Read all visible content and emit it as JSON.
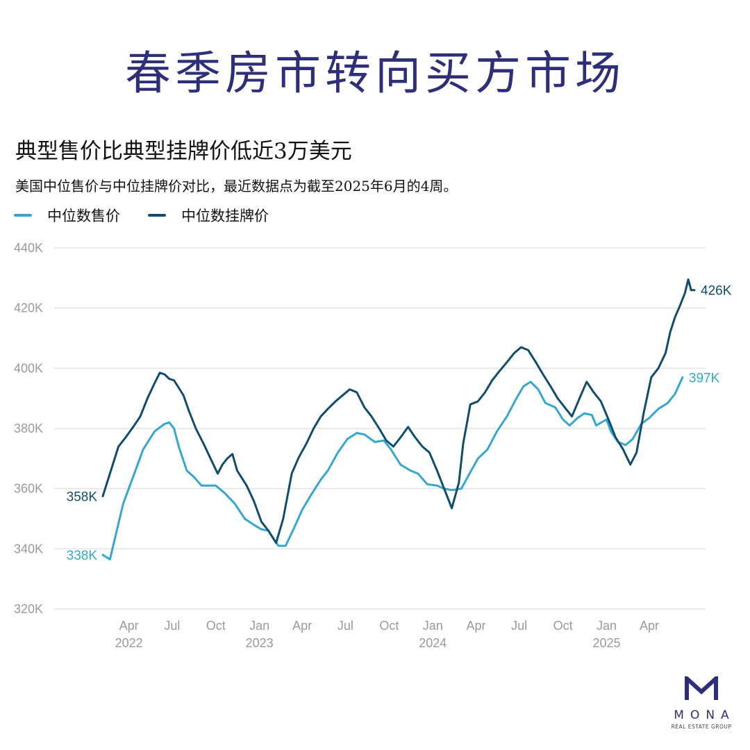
{
  "headline": "春季房市转向买方市场",
  "brand": {
    "name": "MONA",
    "tagline": "REAL ESTATE GROUP",
    "color": "#2e2f7a"
  },
  "chart_data": {
    "type": "line",
    "title": "典型售价比典型挂牌价低近3万美元",
    "subtitle": "美国中位售价与中位挂牌价对比，最近数据点为截至2025年6月的4周。",
    "y_ticks": [
      "440K",
      "420K",
      "400K",
      "380K",
      "360K",
      "340K",
      "320K"
    ],
    "ylim": [
      320000,
      440000
    ],
    "x_range": [
      "2022-02",
      "2025-06"
    ],
    "x_ticks": [
      {
        "month": "Apr",
        "year": "2022"
      },
      {
        "month": "Jul",
        "year": ""
      },
      {
        "month": "Oct",
        "year": ""
      },
      {
        "month": "Jan",
        "year": "2023"
      },
      {
        "month": "Apr",
        "year": ""
      },
      {
        "month": "Jul",
        "year": ""
      },
      {
        "month": "Oct",
        "year": ""
      },
      {
        "month": "Jan",
        "year": "2024"
      },
      {
        "month": "Apr",
        "year": ""
      },
      {
        "month": "Jul",
        "year": ""
      },
      {
        "month": "Oct",
        "year": ""
      },
      {
        "month": "Jan",
        "year": "2025"
      },
      {
        "month": "Apr",
        "year": ""
      }
    ],
    "grid": true,
    "legend_position": "top-left",
    "series": [
      {
        "name": "中位数售价",
        "color": "#35a7cf",
        "start_label": "338K",
        "end_label": "397K",
        "points": [
          [
            "2022-02-05",
            338000
          ],
          [
            "2022-02-20",
            336500
          ],
          [
            "2022-03-05",
            345000
          ],
          [
            "2022-03-20",
            355000
          ],
          [
            "2022-04-10",
            364000
          ],
          [
            "2022-05-01",
            373000
          ],
          [
            "2022-05-25",
            379000
          ],
          [
            "2022-06-15",
            381500
          ],
          [
            "2022-06-25",
            382000
          ],
          [
            "2022-07-05",
            380000
          ],
          [
            "2022-07-15",
            374000
          ],
          [
            "2022-08-01",
            366000
          ],
          [
            "2022-08-15",
            364000
          ],
          [
            "2022-09-01",
            361000
          ],
          [
            "2022-10-01",
            361000
          ],
          [
            "2022-10-20",
            358500
          ],
          [
            "2022-11-10",
            355000
          ],
          [
            "2022-12-01",
            350000
          ],
          [
            "2022-12-20",
            348000
          ],
          [
            "2023-01-05",
            346500
          ],
          [
            "2023-01-20",
            346000
          ],
          [
            "2023-02-01",
            343000
          ],
          [
            "2023-02-10",
            341000
          ],
          [
            "2023-02-25",
            341000
          ],
          [
            "2023-03-15",
            347000
          ],
          [
            "2023-04-01",
            353000
          ],
          [
            "2023-04-20",
            358000
          ],
          [
            "2023-05-10",
            363000
          ],
          [
            "2023-05-25",
            366000
          ],
          [
            "2023-06-15",
            372000
          ],
          [
            "2023-07-05",
            376500
          ],
          [
            "2023-07-25",
            378500
          ],
          [
            "2023-08-10",
            378000
          ],
          [
            "2023-09-01",
            375500
          ],
          [
            "2023-09-20",
            376000
          ],
          [
            "2023-10-05",
            373000
          ],
          [
            "2023-10-25",
            368000
          ],
          [
            "2023-11-15",
            366000
          ],
          [
            "2023-12-01",
            365000
          ],
          [
            "2023-12-20",
            361500
          ],
          [
            "2024-01-10",
            361000
          ],
          [
            "2024-01-25",
            360000
          ],
          [
            "2024-02-10",
            359500
          ],
          [
            "2024-03-01",
            360000
          ],
          [
            "2024-03-15",
            364000
          ],
          [
            "2024-04-05",
            370000
          ],
          [
            "2024-04-25",
            373000
          ],
          [
            "2024-05-15",
            379000
          ],
          [
            "2024-06-05",
            384000
          ],
          [
            "2024-06-25",
            390000
          ],
          [
            "2024-07-10",
            394000
          ],
          [
            "2024-07-25",
            395500
          ],
          [
            "2024-08-10",
            393000
          ],
          [
            "2024-08-25",
            388500
          ],
          [
            "2024-09-15",
            387000
          ],
          [
            "2024-10-01",
            383000
          ],
          [
            "2024-10-15",
            381000
          ],
          [
            "2024-11-01",
            383500
          ],
          [
            "2024-11-15",
            385000
          ],
          [
            "2024-12-01",
            384500
          ],
          [
            "2024-12-10",
            381000
          ],
          [
            "2025-01-01",
            383000
          ],
          [
            "2025-01-10",
            379000
          ],
          [
            "2025-01-25",
            375500
          ],
          [
            "2025-02-10",
            374500
          ],
          [
            "2025-02-25",
            376500
          ],
          [
            "2025-03-15",
            381500
          ],
          [
            "2025-04-01",
            383500
          ],
          [
            "2025-04-20",
            386500
          ],
          [
            "2025-05-10",
            388500
          ],
          [
            "2025-05-25",
            391500
          ],
          [
            "2025-06-10",
            397000
          ]
        ]
      },
      {
        "name": "中位数挂牌价",
        "color": "#0f4c6e",
        "start_label": "358K",
        "end_label": "426K",
        "points": [
          [
            "2022-02-05",
            357500
          ],
          [
            "2022-02-20",
            365000
          ],
          [
            "2022-03-10",
            374000
          ],
          [
            "2022-03-25",
            377000
          ],
          [
            "2022-04-10",
            380500
          ],
          [
            "2022-04-25",
            384000
          ],
          [
            "2022-05-10",
            390000
          ],
          [
            "2022-05-25",
            395000
          ],
          [
            "2022-06-05",
            398500
          ],
          [
            "2022-06-15",
            398000
          ],
          [
            "2022-06-25",
            396500
          ],
          [
            "2022-07-05",
            396000
          ],
          [
            "2022-07-15",
            393500
          ],
          [
            "2022-07-25",
            391000
          ],
          [
            "2022-08-05",
            386000
          ],
          [
            "2022-08-20",
            380000
          ],
          [
            "2022-09-05",
            375000
          ],
          [
            "2022-09-20",
            370000
          ],
          [
            "2022-10-05",
            365000
          ],
          [
            "2022-10-15",
            368000
          ],
          [
            "2022-10-25",
            370000
          ],
          [
            "2022-11-05",
            371500
          ],
          [
            "2022-11-15",
            366000
          ],
          [
            "2022-12-05",
            361000
          ],
          [
            "2022-12-20",
            356000
          ],
          [
            "2023-01-05",
            349000
          ],
          [
            "2023-01-20",
            346000
          ],
          [
            "2023-02-05",
            342000
          ],
          [
            "2023-02-20",
            350000
          ],
          [
            "2023-03-10",
            365000
          ],
          [
            "2023-03-25",
            370500
          ],
          [
            "2023-04-10",
            375000
          ],
          [
            "2023-04-25",
            380000
          ],
          [
            "2023-05-10",
            384000
          ],
          [
            "2023-05-25",
            386500
          ],
          [
            "2023-06-10",
            389000
          ],
          [
            "2023-06-25",
            391000
          ],
          [
            "2023-07-10",
            393000
          ],
          [
            "2023-07-25",
            392000
          ],
          [
            "2023-08-10",
            387000
          ],
          [
            "2023-08-25",
            384000
          ],
          [
            "2023-09-10",
            380000
          ],
          [
            "2023-09-25",
            376000
          ],
          [
            "2023-10-10",
            374000
          ],
          [
            "2023-10-25",
            377000
          ],
          [
            "2023-11-10",
            380500
          ],
          [
            "2023-11-25",
            377000
          ],
          [
            "2023-12-10",
            374000
          ],
          [
            "2023-12-25",
            372000
          ],
          [
            "2024-01-10",
            366000
          ],
          [
            "2024-01-25",
            360000
          ],
          [
            "2024-02-10",
            353500
          ],
          [
            "2024-02-25",
            362000
          ],
          [
            "2024-03-05",
            375000
          ],
          [
            "2024-03-20",
            388000
          ],
          [
            "2024-04-05",
            389000
          ],
          [
            "2024-04-20",
            392000
          ],
          [
            "2024-05-05",
            396000
          ],
          [
            "2024-05-20",
            399000
          ],
          [
            "2024-06-05",
            402000
          ],
          [
            "2024-06-20",
            405000
          ],
          [
            "2024-07-05",
            407000
          ],
          [
            "2024-07-20",
            406000
          ],
          [
            "2024-08-05",
            402000
          ],
          [
            "2024-08-20",
            398000
          ],
          [
            "2024-09-05",
            394000
          ],
          [
            "2024-09-20",
            390000
          ],
          [
            "2024-10-05",
            387000
          ],
          [
            "2024-10-20",
            384000
          ],
          [
            "2024-11-05",
            390000
          ],
          [
            "2024-11-20",
            395500
          ],
          [
            "2024-12-05",
            392000
          ],
          [
            "2024-12-20",
            389000
          ],
          [
            "2025-01-05",
            383000
          ],
          [
            "2025-01-20",
            377000
          ],
          [
            "2025-02-05",
            373000
          ],
          [
            "2025-02-20",
            368000
          ],
          [
            "2025-03-05",
            372000
          ],
          [
            "2025-03-20",
            385000
          ],
          [
            "2025-04-05",
            397000
          ],
          [
            "2025-04-20",
            400000
          ],
          [
            "2025-05-05",
            405000
          ],
          [
            "2025-05-15",
            412000
          ],
          [
            "2025-05-25",
            417000
          ],
          [
            "2025-06-05",
            421000
          ],
          [
            "2025-06-15",
            425000
          ],
          [
            "2025-06-22",
            429500
          ],
          [
            "2025-06-28",
            426000
          ],
          [
            "2025-07-05",
            426000
          ]
        ]
      }
    ]
  }
}
